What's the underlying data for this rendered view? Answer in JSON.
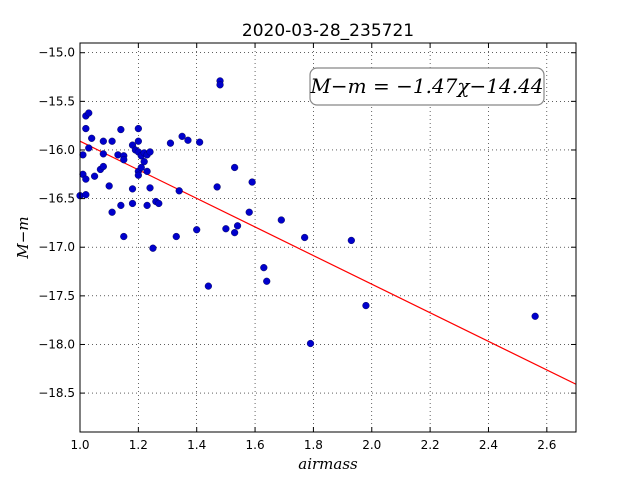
{
  "chart_data": {
    "type": "scatter",
    "title": "2020-03-28_235721",
    "xlabel": "airmass",
    "ylabel": "M−m",
    "xlim": [
      1.0,
      2.7
    ],
    "ylim": [
      -14.9,
      -18.9
    ],
    "y_inverted": true,
    "grid": true,
    "x_ticks": [
      "1.0",
      "1.2",
      "1.4",
      "1.6",
      "1.8",
      "2.0",
      "2.2",
      "2.4",
      "2.6"
    ],
    "y_ticks": [
      "−15.0",
      "−15.5",
      "−16.0",
      "−16.5",
      "−17.0",
      "−17.5",
      "−18.0",
      "−18.5"
    ],
    "annotation": "M−m = −1.47χ−14.44",
    "fit": {
      "slope": -1.47,
      "intercept": -14.44,
      "color": "#ff0000"
    },
    "point_color": "#0000cc",
    "points": [
      [
        1.0,
        -16.47
      ],
      [
        1.01,
        -16.05
      ],
      [
        1.01,
        -16.25
      ],
      [
        1.02,
        -15.65
      ],
      [
        1.02,
        -15.78
      ],
      [
        1.02,
        -16.3
      ],
      [
        1.02,
        -16.46
      ],
      [
        1.03,
        -15.62
      ],
      [
        1.03,
        -15.98
      ],
      [
        1.04,
        -15.88
      ],
      [
        1.05,
        -16.27
      ],
      [
        1.07,
        -16.2
      ],
      [
        1.08,
        -15.91
      ],
      [
        1.08,
        -16.17
      ],
      [
        1.08,
        -16.04
      ],
      [
        1.1,
        -16.37
      ],
      [
        1.11,
        -15.91
      ],
      [
        1.11,
        -16.64
      ],
      [
        1.13,
        -16.05
      ],
      [
        1.14,
        -15.79
      ],
      [
        1.14,
        -16.57
      ],
      [
        1.15,
        -16.06
      ],
      [
        1.15,
        -16.1
      ],
      [
        1.15,
        -16.89
      ],
      [
        1.18,
        -15.95
      ],
      [
        1.18,
        -16.4
      ],
      [
        1.18,
        -16.55
      ],
      [
        1.19,
        -16.0
      ],
      [
        1.2,
        -15.78
      ],
      [
        1.2,
        -15.91
      ],
      [
        1.2,
        -16.02
      ],
      [
        1.2,
        -16.22
      ],
      [
        1.2,
        -16.26
      ],
      [
        1.21,
        -16.06
      ],
      [
        1.21,
        -16.18
      ],
      [
        1.22,
        -16.03
      ],
      [
        1.22,
        -16.12
      ],
      [
        1.23,
        -16.05
      ],
      [
        1.23,
        -16.57
      ],
      [
        1.23,
        -16.22
      ],
      [
        1.24,
        -16.02
      ],
      [
        1.24,
        -16.39
      ],
      [
        1.25,
        -17.01
      ],
      [
        1.26,
        -16.53
      ],
      [
        1.27,
        -16.55
      ],
      [
        1.31,
        -15.93
      ],
      [
        1.33,
        -16.89
      ],
      [
        1.34,
        -16.42
      ],
      [
        1.35,
        -15.86
      ],
      [
        1.37,
        -15.9
      ],
      [
        1.4,
        -16.82
      ],
      [
        1.41,
        -15.92
      ],
      [
        1.44,
        -17.4
      ],
      [
        1.47,
        -16.38
      ],
      [
        1.48,
        -15.29
      ],
      [
        1.48,
        -15.33
      ],
      [
        1.5,
        -16.81
      ],
      [
        1.53,
        -16.85
      ],
      [
        1.53,
        -16.18
      ],
      [
        1.54,
        -16.78
      ],
      [
        1.58,
        -16.64
      ],
      [
        1.59,
        -16.33
      ],
      [
        1.63,
        -17.21
      ],
      [
        1.64,
        -17.35
      ],
      [
        1.69,
        -16.72
      ],
      [
        1.77,
        -16.9
      ],
      [
        1.79,
        -17.99
      ],
      [
        1.93,
        -16.93
      ],
      [
        1.98,
        -17.6
      ],
      [
        2.56,
        -17.71
      ]
    ]
  }
}
